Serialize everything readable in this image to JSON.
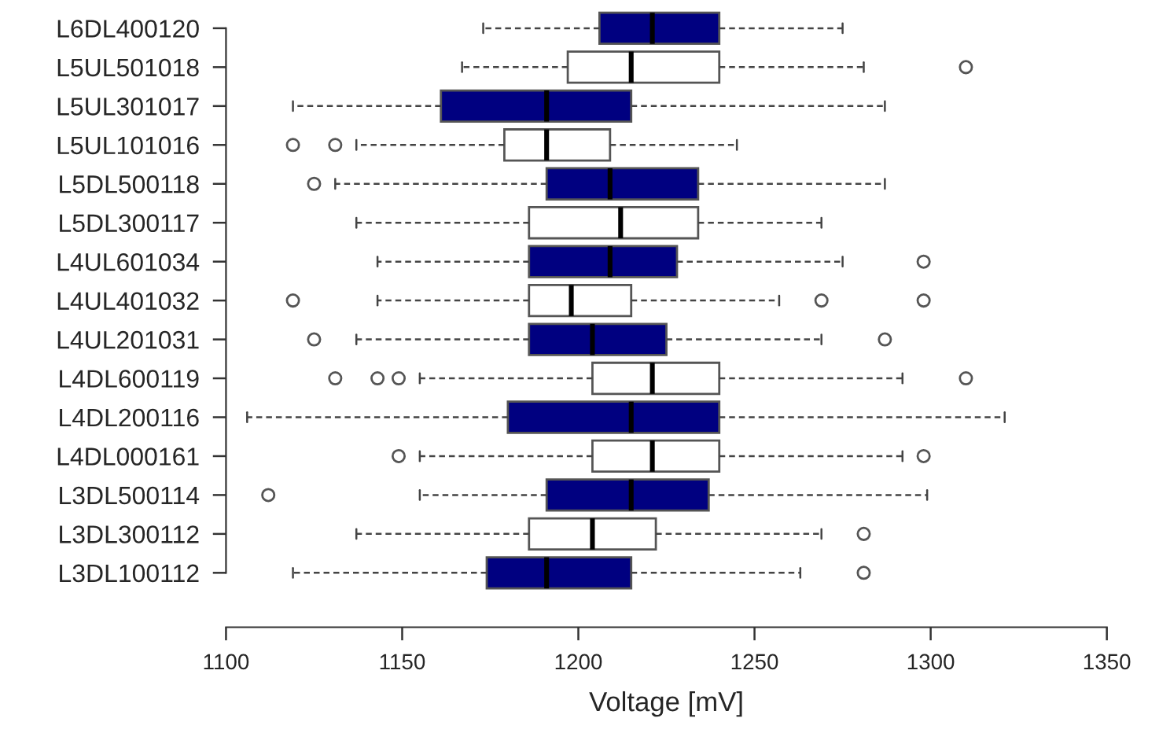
{
  "chart_data": {
    "type": "box",
    "orientation": "horizontal",
    "xlabel": "Voltage [mV]",
    "categories": [
      "L6DL400120",
      "L5UL501018",
      "L5UL301017",
      "L5UL101016",
      "L5DL500118",
      "L5DL300117",
      "L4UL601034",
      "L4UL401032",
      "L4UL201031",
      "L4DL600119",
      "L4DL200116",
      "L4DL000161",
      "L3DL500114",
      "L3DL300112",
      "L3DL100112"
    ],
    "colors": [
      "#000080",
      "#ffffff",
      "#000080",
      "#ffffff",
      "#000080",
      "#ffffff",
      "#000080",
      "#ffffff",
      "#000080",
      "#ffffff",
      "#000080",
      "#ffffff",
      "#000080",
      "#ffffff",
      "#000080"
    ],
    "boxes": [
      {
        "low": 1173,
        "q1": 1206,
        "median": 1221,
        "q3": 1240,
        "high": 1275
      },
      {
        "low": 1167,
        "q1": 1197,
        "median": 1215,
        "q3": 1240,
        "high": 1281,
        "outliers": [
          1310
        ]
      },
      {
        "low": 1119,
        "q1": 1161,
        "median": 1191,
        "q3": 1215,
        "high": 1287
      },
      {
        "low": 1137,
        "q1": 1179,
        "median": 1191,
        "q3": 1209,
        "high": 1245,
        "outliers": [
          1119,
          1131
        ]
      },
      {
        "low": 1131,
        "q1": 1191,
        "median": 1209,
        "q3": 1234,
        "high": 1287,
        "outliers": [
          1125
        ]
      },
      {
        "low": 1137,
        "q1": 1186,
        "median": 1212,
        "q3": 1234,
        "high": 1269
      },
      {
        "low": 1143,
        "q1": 1186,
        "median": 1209,
        "q3": 1228,
        "high": 1275,
        "outliers": [
          1298
        ]
      },
      {
        "low": 1143,
        "q1": 1186,
        "median": 1198,
        "q3": 1215,
        "high": 1257,
        "outliers": [
          1119,
          1269,
          1298
        ]
      },
      {
        "low": 1137,
        "q1": 1186,
        "median": 1204,
        "q3": 1225,
        "high": 1269,
        "outliers": [
          1125,
          1287
        ]
      },
      {
        "low": 1155,
        "q1": 1204,
        "median": 1221,
        "q3": 1240,
        "high": 1292,
        "outliers": [
          1131,
          1143,
          1149,
          1310
        ]
      },
      {
        "low": 1106,
        "q1": 1180,
        "median": 1215,
        "q3": 1240,
        "high": 1321
      },
      {
        "low": 1155,
        "q1": 1204,
        "median": 1221,
        "q3": 1240,
        "high": 1292,
        "outliers": [
          1149,
          1298
        ]
      },
      {
        "low": 1155,
        "q1": 1191,
        "median": 1215,
        "q3": 1237,
        "high": 1299,
        "outliers": [
          1112
        ]
      },
      {
        "low": 1137,
        "q1": 1186,
        "median": 1204,
        "q3": 1222,
        "high": 1269,
        "outliers": [
          1281
        ]
      },
      {
        "low": 1119,
        "q1": 1174,
        "median": 1191,
        "q3": 1215,
        "high": 1263,
        "outliers": [
          1281
        ]
      }
    ],
    "xlim": [
      1100,
      1350
    ],
    "xticks": [
      1100,
      1150,
      1200,
      1250,
      1300,
      1350
    ],
    "grid": false,
    "legend": false
  }
}
